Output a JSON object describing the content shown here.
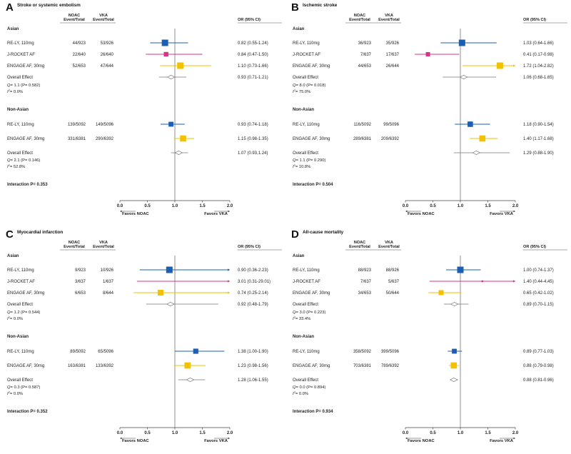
{
  "chart_data": [
    {
      "type": "forest",
      "letter": "A",
      "title": "Stroke or systemic embolism",
      "headers": {
        "noac": [
          "NOAC",
          "Event/Total"
        ],
        "vka": [
          "VKA",
          "Event/Total"
        ],
        "or": "OR (95% CI)"
      },
      "xlim": [
        0.0,
        2.0
      ],
      "ticks": [
        "0.0",
        "0.5",
        "1.0",
        "1.5",
        "2.0"
      ],
      "favors_left": "Favors NOAC",
      "favors_right": "Favors VKA",
      "interaction": "Interaction P= 0.353",
      "groups": [
        {
          "name": "Asian",
          "rows": [
            {
              "label": "RE-LY, 110mg",
              "noac": "44/923",
              "vka": "53/926",
              "or_text": "0.82 (0.55-1.24)",
              "or": 0.82,
              "lo": 0.55,
              "hi": 1.24,
              "color": "#1a5fb4",
              "size": 4.5,
              "arrow": ""
            },
            {
              "label": "J-ROCKET AF",
              "noac": "22/640",
              "vka": "26/640",
              "or_text": "0.84 (0.47-1.50)",
              "or": 0.84,
              "lo": 0.47,
              "hi": 1.5,
              "color": "#d6338a",
              "size": 3.2,
              "arrow": ""
            },
            {
              "label": "ENGAGE AF, 30mg",
              "noac": "52/653",
              "vka": "47/644",
              "or_text": "1.10 (0.73-1.66)",
              "or": 1.1,
              "lo": 0.73,
              "hi": 1.66,
              "color": "#f2c200",
              "size": 4.5,
              "arrow": ""
            }
          ],
          "overall": {
            "label": "Overall Effect",
            "or_text": "0.93 (0.71-1.21)",
            "or": 0.93,
            "lo": 0.71,
            "hi": 1.21
          },
          "q": "= 1.1 (P= 0.582)",
          "i2": "= 0.0%"
        },
        {
          "name": "Non-Asian",
          "rows": [
            {
              "label": "RE-LY, 110mg",
              "noac": "139/5092",
              "vka": "149/5096",
              "or_text": "0.93 (0.74-1.18)",
              "or": 0.93,
              "lo": 0.74,
              "hi": 1.18,
              "color": "#1a5fb4",
              "size": 3.4,
              "arrow": ""
            },
            {
              "label": "ENGAGE AF, 30mg",
              "noac": "331/6381",
              "vka": "290/6392",
              "or_text": "1.15 (0.98-1.35)",
              "or": 1.15,
              "lo": 0.98,
              "hi": 1.35,
              "color": "#f2c200",
              "size": 4.3,
              "arrow": ""
            }
          ],
          "overall": {
            "label": "Overall Effect",
            "or_text": "1.07 (0.93,1.24)",
            "or": 1.07,
            "lo": 0.93,
            "hi": 1.24
          },
          "q": "= 2.1 (P= 0.146)",
          "i2": "= 52.8%"
        }
      ]
    },
    {
      "type": "forest",
      "letter": "B",
      "title": "Ischemic stroke",
      "headers": {
        "noac": [
          "NOAC",
          "Event/Total"
        ],
        "vka": [
          "VKA",
          "Event/Total"
        ],
        "or": "OR (95% CI)"
      },
      "xlim": [
        0.0,
        2.0
      ],
      "ticks": [
        "0.0",
        "0.5",
        "1.0",
        "1.5",
        "2.0"
      ],
      "favors_left": "Favors NOAC",
      "favors_right": "Favors VKA",
      "interaction": "Interaction P= 0.504",
      "groups": [
        {
          "name": "Asian",
          "rows": [
            {
              "label": "RE-LY, 110mg",
              "noac": "36/923",
              "vka": "35/926",
              "or_text": "1.03 (0.64-1.66)",
              "or": 1.03,
              "lo": 0.64,
              "hi": 1.66,
              "color": "#1a5fb4",
              "size": 4.5,
              "arrow": ""
            },
            {
              "label": "J-ROCKET AF",
              "noac": "7/637",
              "vka": "17/637",
              "or_text": "0.41 (0.17-0.98)",
              "or": 0.41,
              "lo": 0.17,
              "hi": 0.98,
              "color": "#d6338a",
              "size": 3.0,
              "arrow": ""
            },
            {
              "label": "ENGAGE AF, 30mg",
              "noac": "44/653",
              "vka": "26/644",
              "or_text": "1.72 (1.04-2.82)",
              "or": 1.72,
              "lo": 1.04,
              "hi": 2.82,
              "color": "#f2c200",
              "size": 4.5,
              "arrow": "right"
            }
          ],
          "overall": {
            "label": "Overall Effect",
            "or_text": "1.06 (0.68-1.65)",
            "or": 1.06,
            "lo": 0.68,
            "hi": 1.65
          },
          "q": "= 8.0 (P= 0.018)",
          "i2": "= 75.0%"
        },
        {
          "name": "Non-Asian",
          "rows": [
            {
              "label": "RE-LY, 110mg",
              "noac": "116/5092",
              "vka": "99/5096",
              "or_text": "1.18 (0.90-1.54)",
              "or": 1.18,
              "lo": 0.9,
              "hi": 1.54,
              "color": "#1a5fb4",
              "size": 3.8,
              "arrow": ""
            },
            {
              "label": "ENGAGE AF, 30mg",
              "noac": "289/6381",
              "vka": "209/6392",
              "or_text": "1.40 (1.17-1.68)",
              "or": 1.4,
              "lo": 1.17,
              "hi": 1.68,
              "color": "#f2c200",
              "size": 4.3,
              "arrow": ""
            }
          ],
          "overall": {
            "label": "Overall Effect",
            "or_text": "1.29 (0.88-1.90)",
            "or": 1.29,
            "lo": 0.88,
            "hi": 1.9
          },
          "q": "= 1.1 (P= 0.290)",
          "i2": "= 10.8%"
        }
      ]
    },
    {
      "type": "forest",
      "letter": "C",
      "title": "Myocardial infarction",
      "headers": {
        "noac": [
          "NOAC",
          "Event/Total"
        ],
        "vka": [
          "VKA",
          "Event/Total"
        ],
        "or": "OR (95% CI)"
      },
      "xlim": [
        0.0,
        2.0
      ],
      "ticks": [
        "0.0",
        "0.5",
        "1.0",
        "1.5",
        "2.0"
      ],
      "favors_left": "Favors NOAC",
      "favors_right": "Favors VKA",
      "interaction": "Interaction P= 0.352",
      "groups": [
        {
          "name": "Asian",
          "rows": [
            {
              "label": "RE-LY, 110mg",
              "noac": "9/923",
              "vka": "10/926",
              "or_text": "0.90 (0.36-2.23)",
              "or": 0.9,
              "lo": 0.36,
              "hi": 2.23,
              "color": "#1a5fb4",
              "size": 4.5,
              "arrow": "right"
            },
            {
              "label": "J-ROCKET AF",
              "noac": "3/637",
              "vka": "1/637",
              "or_text": "3.01 (0.31-29.01)",
              "or": 3.01,
              "lo": 0.31,
              "hi": 29.01,
              "color": "#d6338a",
              "size": 0,
              "arrow": "right"
            },
            {
              "label": "ENGAGE AF, 30mg",
              "noac": "6/653",
              "vka": "8/644",
              "or_text": "0.74 (0.25-2.14)",
              "or": 0.74,
              "lo": 0.25,
              "hi": 2.14,
              "color": "#f2c200",
              "size": 4.0,
              "arrow": "right"
            }
          ],
          "overall": {
            "label": "Overall Effect",
            "or_text": "0.92 (0.48-1.79)",
            "or": 0.92,
            "lo": 0.48,
            "hi": 1.79
          },
          "q": "= 1.2 (P= 0.544)",
          "i2": "= 0.0%"
        },
        {
          "name": "Non-Asian",
          "rows": [
            {
              "label": "RE-LY, 110mg",
              "noac": "89/5092",
              "vka": "65/5096",
              "or_text": "1.38 (1.00-1.90)",
              "or": 1.38,
              "lo": 1.0,
              "hi": 1.9,
              "color": "#1a5fb4",
              "size": 3.6,
              "arrow": ""
            },
            {
              "label": "ENGAGE AF, 30mg",
              "noac": "163/6381",
              "vka": "133/6392",
              "or_text": "1.23 (0.98-1.56)",
              "or": 1.23,
              "lo": 0.98,
              "hi": 1.56,
              "color": "#f2c200",
              "size": 4.3,
              "arrow": ""
            }
          ],
          "overall": {
            "label": "Overall Effect",
            "or_text": "1.28 (1.06-1.55)",
            "or": 1.28,
            "lo": 1.06,
            "hi": 1.55
          },
          "q": "= 0.3 (P= 0.587)",
          "i2": "= 0.0%"
        }
      ]
    },
    {
      "type": "forest",
      "letter": "D",
      "title": "All-cause mortality",
      "headers": {
        "noac": [
          "NOAC",
          "Event/Total"
        ],
        "vka": [
          "VKA",
          "Event/Total"
        ],
        "or": "OR (95% CI)"
      },
      "xlim": [
        0.0,
        2.0
      ],
      "ticks": [
        "0.0",
        "0.5",
        "1.0",
        "1.5",
        "2.0"
      ],
      "favors_left": "Favors NOAC",
      "favors_right": "Favors VKA",
      "interaction": "Interaction P= 0.934",
      "groups": [
        {
          "name": "Asian",
          "rows": [
            {
              "label": "RE-LY, 110mg",
              "noac": "88/923",
              "vka": "88/926",
              "or_text": "1.00 (0.74-1.37)",
              "or": 1.0,
              "lo": 0.74,
              "hi": 1.37,
              "color": "#1a5fb4",
              "size": 4.5,
              "arrow": ""
            },
            {
              "label": "J-ROCKET AF",
              "noac": "7/637",
              "vka": "5/637",
              "or_text": "1.40 (0.44-4.45)",
              "or": 1.4,
              "lo": 0.44,
              "hi": 4.45,
              "color": "#d6338a",
              "size": 1.2,
              "arrow": "right"
            },
            {
              "label": "ENGAGE AF, 30mg",
              "noac": "34/653",
              "vka": "50/644",
              "or_text": "0.65 (0.42-1.02)",
              "or": 0.65,
              "lo": 0.42,
              "hi": 1.02,
              "color": "#f2c200",
              "size": 3.5,
              "arrow": ""
            }
          ],
          "overall": {
            "label": "Overall Effect",
            "or_text": "0.89 (0.70-1.15)",
            "or": 0.89,
            "lo": 0.7,
            "hi": 1.15
          },
          "q": "= 3.0 (P= 0.223)",
          "i2": "= 33.4%"
        },
        {
          "name": "Non-Asian",
          "rows": [
            {
              "label": "RE-LY, 110mg",
              "noac": "358/5092",
              "vka": "399/5096",
              "or_text": "0.89 (0.77-1.03)",
              "or": 0.89,
              "lo": 0.77,
              "hi": 1.03,
              "color": "#1a5fb4",
              "size": 3.4,
              "arrow": ""
            },
            {
              "label": "ENGAGE AF, 30mg",
              "noac": "703/6381",
              "vka": "789/6392",
              "or_text": "0.88 (0.79-0.98)",
              "or": 0.88,
              "lo": 0.79,
              "hi": 0.98,
              "color": "#f2c200",
              "size": 4.3,
              "arrow": ""
            }
          ],
          "overall": {
            "label": "Overall Effect",
            "or_text": "0.88 (0.81-0.96)",
            "or": 0.88,
            "lo": 0.81,
            "hi": 0.96
          },
          "q": "= 0.0 (P= 0.894)",
          "i2": "= 0.0%"
        }
      ]
    }
  ]
}
